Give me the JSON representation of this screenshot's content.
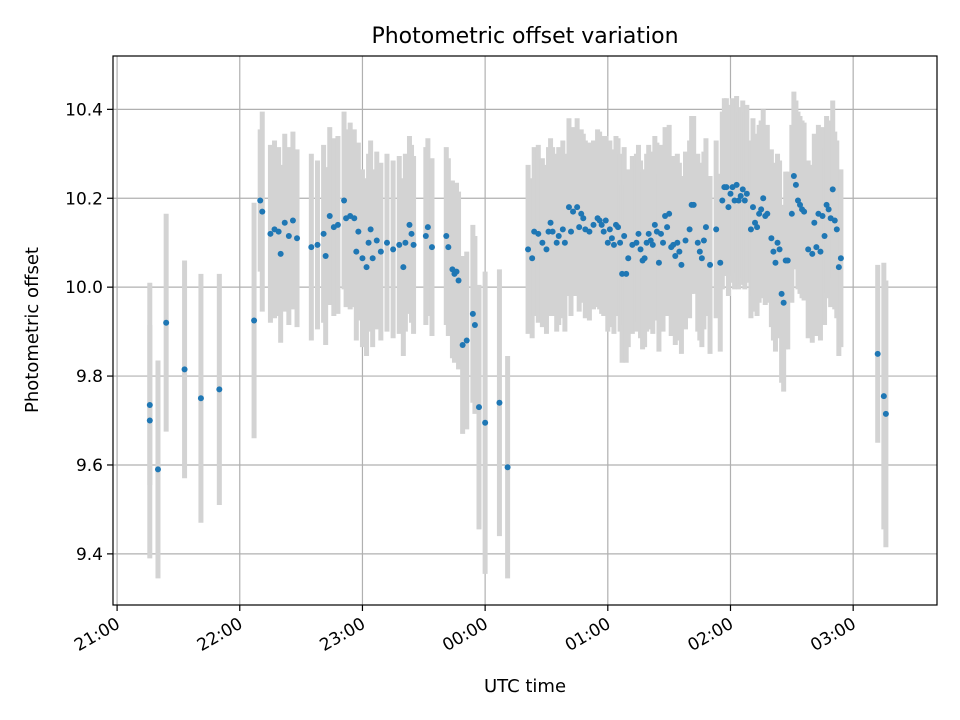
{
  "chart_data": {
    "type": "scatter",
    "title": "Photometric offset variation",
    "xlabel": "UTC time",
    "ylabel": "Photometric offset",
    "x_axis": {
      "kind": "time",
      "start_time": "20:58",
      "end_time": "03:41",
      "ticks": [
        "21:00",
        "22:00",
        "23:00",
        "00:00",
        "01:00",
        "02:00",
        "03:00"
      ],
      "tick_label_rotation_deg": 30
    },
    "ylim": [
      9.285,
      10.52
    ],
    "yticks": [
      9.4,
      9.6,
      9.8,
      10.0,
      10.2,
      10.4
    ],
    "grid": true,
    "colors": {
      "marker": "#1f77b4",
      "errorbar": "#d3d3d3",
      "grid": "#b0b0b0"
    },
    "series": [
      {
        "marker": "dot",
        "points": [
          {
            "t": "21:16",
            "y": 9.735,
            "err": 0.18
          },
          {
            "t": "21:16",
            "y": 9.7,
            "err": 0.31
          },
          {
            "t": "21:20",
            "y": 9.59,
            "err": 0.245
          },
          {
            "t": "21:24",
            "y": 9.92,
            "err": 0.245
          },
          {
            "t": "21:33",
            "y": 9.815,
            "err": 0.245
          },
          {
            "t": "21:41",
            "y": 9.75,
            "err": 0.28
          },
          {
            "t": "21:50",
            "y": 9.77,
            "err": 0.26
          },
          {
            "t": "22:07",
            "y": 9.925,
            "err": 0.265
          },
          {
            "t": "22:10",
            "y": 10.195,
            "err": 0.16
          },
          {
            "t": "22:11",
            "y": 10.17,
            "err": 0.225
          },
          {
            "t": "22:15",
            "y": 10.12,
            "err": 0.2
          },
          {
            "t": "22:17",
            "y": 10.13,
            "err": 0.2
          },
          {
            "t": "22:19",
            "y": 10.125,
            "err": 0.19
          },
          {
            "t": "22:20",
            "y": 10.075,
            "err": 0.2
          },
          {
            "t": "22:22",
            "y": 10.145,
            "err": 0.2
          },
          {
            "t": "22:24",
            "y": 10.115,
            "err": 0.2
          },
          {
            "t": "22:26",
            "y": 10.15,
            "err": 0.2
          },
          {
            "t": "22:28",
            "y": 10.11,
            "err": 0.2
          },
          {
            "t": "22:35",
            "y": 10.09,
            "err": 0.21
          },
          {
            "t": "22:38",
            "y": 10.095,
            "err": 0.19
          },
          {
            "t": "22:41",
            "y": 10.12,
            "err": 0.2
          },
          {
            "t": "22:42",
            "y": 10.07,
            "err": 0.2
          },
          {
            "t": "22:44",
            "y": 10.16,
            "err": 0.2
          },
          {
            "t": "22:46",
            "y": 10.135,
            "err": 0.2
          },
          {
            "t": "22:48",
            "y": 10.14,
            "err": 0.2
          },
          {
            "t": "22:51",
            "y": 10.195,
            "err": 0.2
          },
          {
            "t": "22:52",
            "y": 10.155,
            "err": 0.2
          },
          {
            "t": "22:54",
            "y": 10.16,
            "err": 0.21
          },
          {
            "t": "22:56",
            "y": 10.155,
            "err": 0.2
          },
          {
            "t": "22:57",
            "y": 10.08,
            "err": 0.2
          },
          {
            "t": "22:58",
            "y": 10.125,
            "err": 0.2
          },
          {
            "t": "23:00",
            "y": 10.065,
            "err": 0.2
          },
          {
            "t": "23:02",
            "y": 10.045,
            "err": 0.2
          },
          {
            "t": "23:03",
            "y": 10.1,
            "err": 0.2
          },
          {
            "t": "23:04",
            "y": 10.13,
            "err": 0.2
          },
          {
            "t": "23:05",
            "y": 10.065,
            "err": 0.2
          },
          {
            "t": "23:07",
            "y": 10.105,
            "err": 0.2
          },
          {
            "t": "23:09",
            "y": 10.08,
            "err": 0.2
          },
          {
            "t": "23:12",
            "y": 10.1,
            "err": 0.2
          },
          {
            "t": "23:15",
            "y": 10.085,
            "err": 0.2
          },
          {
            "t": "23:18",
            "y": 10.095,
            "err": 0.2
          },
          {
            "t": "23:20",
            "y": 10.045,
            "err": 0.2
          },
          {
            "t": "23:21",
            "y": 10.1,
            "err": 0.2
          },
          {
            "t": "23:23",
            "y": 10.14,
            "err": 0.2
          },
          {
            "t": "23:24",
            "y": 10.12,
            "err": 0.2
          },
          {
            "t": "23:25",
            "y": 10.095,
            "err": 0.2
          },
          {
            "t": "23:31",
            "y": 10.115,
            "err": 0.2
          },
          {
            "t": "23:32",
            "y": 10.135,
            "err": 0.2
          },
          {
            "t": "23:34",
            "y": 10.09,
            "err": 0.2
          },
          {
            "t": "23:41",
            "y": 10.115,
            "err": 0.2
          },
          {
            "t": "23:42",
            "y": 10.09,
            "err": 0.2
          },
          {
            "t": "23:44",
            "y": 10.04,
            "err": 0.2
          },
          {
            "t": "23:45",
            "y": 10.03,
            "err": 0.2
          },
          {
            "t": "23:46",
            "y": 10.035,
            "err": 0.2
          },
          {
            "t": "23:47",
            "y": 10.015,
            "err": 0.2
          },
          {
            "t": "23:49",
            "y": 9.87,
            "err": 0.2
          },
          {
            "t": "23:51",
            "y": 9.88,
            "err": 0.2
          },
          {
            "t": "23:54",
            "y": 9.94,
            "err": 0.2
          },
          {
            "t": "23:55",
            "y": 9.915,
            "err": 0.2
          },
          {
            "t": "23:57",
            "y": 9.73,
            "err": 0.275
          },
          {
            "t": "00:00",
            "y": 9.695,
            "err": 0.34
          },
          {
            "t": "00:07",
            "y": 9.74,
            "err": 0.3
          },
          {
            "t": "00:11",
            "y": 9.595,
            "err": 0.25
          },
          {
            "t": "00:21",
            "y": 10.085,
            "err": 0.19
          },
          {
            "t": "00:23",
            "y": 10.065,
            "err": 0.18
          },
          {
            "t": "00:24",
            "y": 10.125,
            "err": 0.19
          },
          {
            "t": "00:26",
            "y": 10.12,
            "err": 0.2
          },
          {
            "t": "00:28",
            "y": 10.1,
            "err": 0.19
          },
          {
            "t": "00:30",
            "y": 10.085,
            "err": 0.19
          },
          {
            "t": "00:31",
            "y": 10.125,
            "err": 0.19
          },
          {
            "t": "00:32",
            "y": 10.145,
            "err": 0.19
          },
          {
            "t": "00:33",
            "y": 10.125,
            "err": 0.19
          },
          {
            "t": "00:35",
            "y": 10.1,
            "err": 0.2
          },
          {
            "t": "00:36",
            "y": 10.115,
            "err": 0.2
          },
          {
            "t": "00:38",
            "y": 10.13,
            "err": 0.2
          },
          {
            "t": "00:39",
            "y": 10.1,
            "err": 0.2
          },
          {
            "t": "00:41",
            "y": 10.18,
            "err": 0.2
          },
          {
            "t": "00:42",
            "y": 10.125,
            "err": 0.19
          },
          {
            "t": "00:43",
            "y": 10.17,
            "err": 0.19
          },
          {
            "t": "00:45",
            "y": 10.18,
            "err": 0.2
          },
          {
            "t": "00:46",
            "y": 10.135,
            "err": 0.19
          },
          {
            "t": "00:47",
            "y": 10.165,
            "err": 0.19
          },
          {
            "t": "00:48",
            "y": 10.155,
            "err": 0.19
          },
          {
            "t": "00:49",
            "y": 10.13,
            "err": 0.2
          },
          {
            "t": "00:51",
            "y": 10.125,
            "err": 0.2
          },
          {
            "t": "00:53",
            "y": 10.14,
            "err": 0.19
          },
          {
            "t": "00:55",
            "y": 10.155,
            "err": 0.2
          },
          {
            "t": "00:56",
            "y": 10.15,
            "err": 0.2
          },
          {
            "t": "00:57",
            "y": 10.14,
            "err": 0.2
          },
          {
            "t": "00:58",
            "y": 10.125,
            "err": 0.19
          },
          {
            "t": "00:59",
            "y": 10.15,
            "err": 0.19
          },
          {
            "t": "01:00",
            "y": 10.1,
            "err": 0.2
          },
          {
            "t": "01:01",
            "y": 10.13,
            "err": 0.2
          },
          {
            "t": "01:02",
            "y": 10.11,
            "err": 0.2
          },
          {
            "t": "01:03",
            "y": 10.095,
            "err": 0.2
          },
          {
            "t": "01:04",
            "y": 10.14,
            "err": 0.2
          },
          {
            "t": "01:05",
            "y": 10.135,
            "err": 0.2
          },
          {
            "t": "01:06",
            "y": 10.1,
            "err": 0.2
          },
          {
            "t": "01:07",
            "y": 10.03,
            "err": 0.2
          },
          {
            "t": "01:08",
            "y": 10.115,
            "err": 0.2
          },
          {
            "t": "01:09",
            "y": 10.03,
            "err": 0.2
          },
          {
            "t": "01:10",
            "y": 10.065,
            "err": 0.2
          },
          {
            "t": "01:12",
            "y": 10.095,
            "err": 0.2
          },
          {
            "t": "01:14",
            "y": 10.1,
            "err": 0.2
          },
          {
            "t": "01:15",
            "y": 10.12,
            "err": 0.2
          },
          {
            "t": "01:16",
            "y": 10.085,
            "err": 0.2
          },
          {
            "t": "01:17",
            "y": 10.06,
            "err": 0.2
          },
          {
            "t": "01:18",
            "y": 10.065,
            "err": 0.2
          },
          {
            "t": "01:19",
            "y": 10.1,
            "err": 0.2
          },
          {
            "t": "01:20",
            "y": 10.12,
            "err": 0.2
          },
          {
            "t": "01:21",
            "y": 10.105,
            "err": 0.2
          },
          {
            "t": "01:22",
            "y": 10.095,
            "err": 0.2
          },
          {
            "t": "01:23",
            "y": 10.14,
            "err": 0.2
          },
          {
            "t": "01:24",
            "y": 10.125,
            "err": 0.2
          },
          {
            "t": "01:25",
            "y": 10.055,
            "err": 0.2
          },
          {
            "t": "01:26",
            "y": 10.12,
            "err": 0.2
          },
          {
            "t": "01:27",
            "y": 10.1,
            "err": 0.2
          },
          {
            "t": "01:28",
            "y": 10.16,
            "err": 0.2
          },
          {
            "t": "01:29",
            "y": 10.135,
            "err": 0.2
          },
          {
            "t": "01:30",
            "y": 10.165,
            "err": 0.2
          },
          {
            "t": "01:31",
            "y": 10.09,
            "err": 0.2
          },
          {
            "t": "01:32",
            "y": 10.095,
            "err": 0.2
          },
          {
            "t": "01:33",
            "y": 10.07,
            "err": 0.2
          },
          {
            "t": "01:34",
            "y": 10.1,
            "err": 0.2
          },
          {
            "t": "01:35",
            "y": 10.08,
            "err": 0.2
          },
          {
            "t": "01:36",
            "y": 10.05,
            "err": 0.2
          },
          {
            "t": "01:38",
            "y": 10.105,
            "err": 0.2
          },
          {
            "t": "01:40",
            "y": 10.13,
            "err": 0.2
          },
          {
            "t": "01:41",
            "y": 10.185,
            "err": 0.2
          },
          {
            "t": "01:42",
            "y": 10.185,
            "err": 0.2
          },
          {
            "t": "01:44",
            "y": 10.1,
            "err": 0.2
          },
          {
            "t": "01:45",
            "y": 10.08,
            "err": 0.2
          },
          {
            "t": "01:46",
            "y": 10.065,
            "err": 0.2
          },
          {
            "t": "01:47",
            "y": 10.105,
            "err": 0.2
          },
          {
            "t": "01:48",
            "y": 10.135,
            "err": 0.2
          },
          {
            "t": "01:50",
            "y": 10.05,
            "err": 0.2
          },
          {
            "t": "01:53",
            "y": 10.13,
            "err": 0.2
          },
          {
            "t": "01:55",
            "y": 10.055,
            "err": 0.2
          },
          {
            "t": "01:56",
            "y": 10.195,
            "err": 0.2
          },
          {
            "t": "01:57",
            "y": 10.225,
            "err": 0.2
          },
          {
            "t": "01:58",
            "y": 10.225,
            "err": 0.2
          },
          {
            "t": "01:59",
            "y": 10.18,
            "err": 0.2
          },
          {
            "t": "02:00",
            "y": 10.21,
            "err": 0.2
          },
          {
            "t": "02:01",
            "y": 10.225,
            "err": 0.2
          },
          {
            "t": "02:02",
            "y": 10.195,
            "err": 0.2
          },
          {
            "t": "02:03",
            "y": 10.23,
            "err": 0.2
          },
          {
            "t": "02:04",
            "y": 10.195,
            "err": 0.2
          },
          {
            "t": "02:05",
            "y": 10.205,
            "err": 0.2
          },
          {
            "t": "02:06",
            "y": 10.22,
            "err": 0.2
          },
          {
            "t": "02:07",
            "y": 10.195,
            "err": 0.2
          },
          {
            "t": "02:08",
            "y": 10.21,
            "err": 0.2
          },
          {
            "t": "02:10",
            "y": 10.13,
            "err": 0.2
          },
          {
            "t": "02:11",
            "y": 10.18,
            "err": 0.2
          },
          {
            "t": "02:12",
            "y": 10.145,
            "err": 0.2
          },
          {
            "t": "02:13",
            "y": 10.135,
            "err": 0.2
          },
          {
            "t": "02:14",
            "y": 10.165,
            "err": 0.2
          },
          {
            "t": "02:15",
            "y": 10.175,
            "err": 0.2
          },
          {
            "t": "02:16",
            "y": 10.2,
            "err": 0.2
          },
          {
            "t": "02:17",
            "y": 10.16,
            "err": 0.2
          },
          {
            "t": "02:18",
            "y": 10.165,
            "err": 0.2
          },
          {
            "t": "02:20",
            "y": 10.11,
            "err": 0.2
          },
          {
            "t": "02:21",
            "y": 10.08,
            "err": 0.2
          },
          {
            "t": "02:22",
            "y": 10.055,
            "err": 0.2
          },
          {
            "t": "02:23",
            "y": 10.1,
            "err": 0.2
          },
          {
            "t": "02:24",
            "y": 10.085,
            "err": 0.2
          },
          {
            "t": "02:25",
            "y": 9.985,
            "err": 0.2
          },
          {
            "t": "02:26",
            "y": 9.965,
            "err": 0.2
          },
          {
            "t": "02:27",
            "y": 10.06,
            "err": 0.2
          },
          {
            "t": "02:28",
            "y": 10.06,
            "err": 0.2
          },
          {
            "t": "02:30",
            "y": 10.165,
            "err": 0.2
          },
          {
            "t": "02:31",
            "y": 10.25,
            "err": 0.19
          },
          {
            "t": "02:32",
            "y": 10.23,
            "err": 0.19
          },
          {
            "t": "02:33",
            "y": 10.195,
            "err": 0.2
          },
          {
            "t": "02:34",
            "y": 10.185,
            "err": 0.2
          },
          {
            "t": "02:35",
            "y": 10.175,
            "err": 0.2
          },
          {
            "t": "02:36",
            "y": 10.17,
            "err": 0.2
          },
          {
            "t": "02:38",
            "y": 10.085,
            "err": 0.2
          },
          {
            "t": "02:40",
            "y": 10.075,
            "err": 0.2
          },
          {
            "t": "02:41",
            "y": 10.145,
            "err": 0.2
          },
          {
            "t": "02:42",
            "y": 10.09,
            "err": 0.2
          },
          {
            "t": "02:43",
            "y": 10.165,
            "err": 0.2
          },
          {
            "t": "02:44",
            "y": 10.08,
            "err": 0.2
          },
          {
            "t": "02:45",
            "y": 10.16,
            "err": 0.2
          },
          {
            "t": "02:46",
            "y": 10.115,
            "err": 0.2
          },
          {
            "t": "02:47",
            "y": 10.185,
            "err": 0.2
          },
          {
            "t": "02:48",
            "y": 10.175,
            "err": 0.2
          },
          {
            "t": "02:49",
            "y": 10.155,
            "err": 0.2
          },
          {
            "t": "02:50",
            "y": 10.22,
            "err": 0.2
          },
          {
            "t": "02:51",
            "y": 10.15,
            "err": 0.2
          },
          {
            "t": "02:52",
            "y": 10.13,
            "err": 0.2
          },
          {
            "t": "02:53",
            "y": 10.045,
            "err": 0.2
          },
          {
            "t": "02:54",
            "y": 10.065,
            "err": 0.2
          },
          {
            "t": "03:12",
            "y": 9.85,
            "err": 0.2
          },
          {
            "t": "03:15",
            "y": 9.755,
            "err": 0.3
          },
          {
            "t": "03:16",
            "y": 9.715,
            "err": 0.3
          }
        ]
      }
    ]
  }
}
